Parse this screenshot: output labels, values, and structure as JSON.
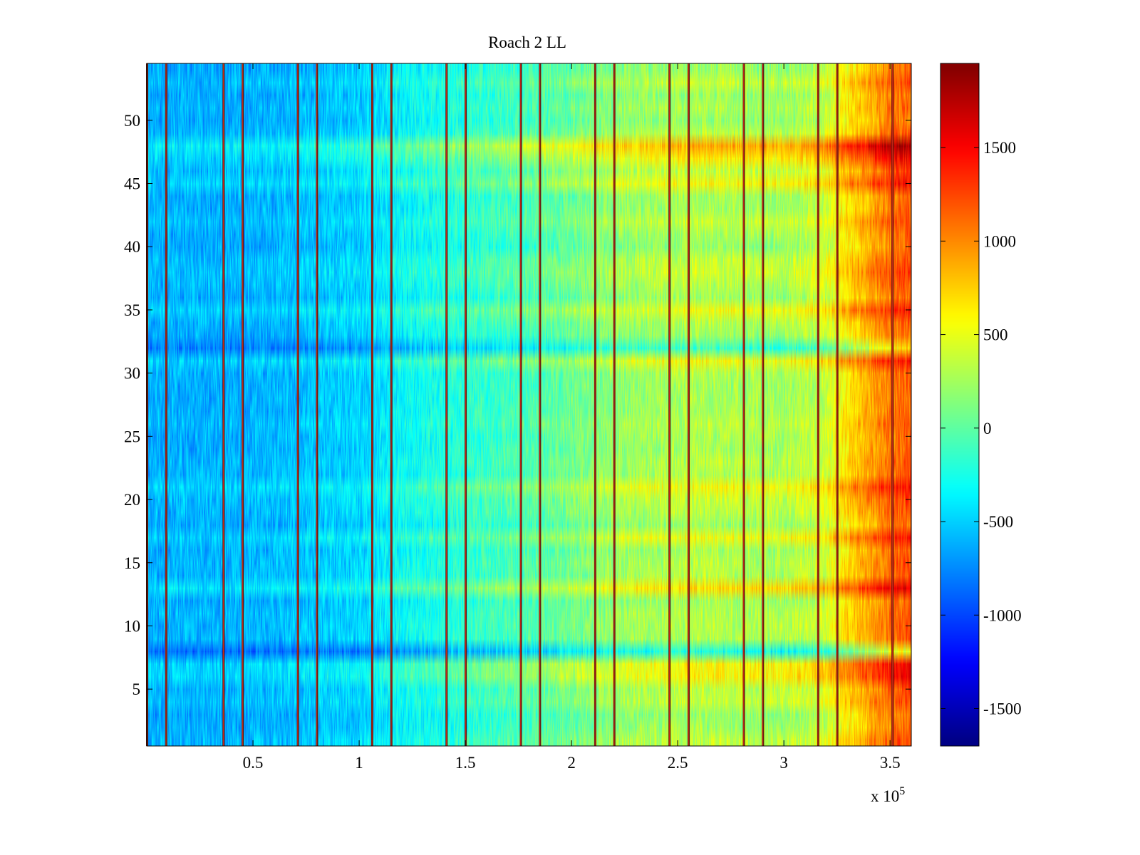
{
  "chart_data": {
    "type": "heatmap",
    "title": "Roach 2 LL",
    "xlabel": "",
    "ylabel": "",
    "x_exponent_label": "x 10",
    "x_exponent_power": "5",
    "xlim": [
      0,
      3.6
    ],
    "ylim": [
      0.5,
      54.5
    ],
    "x_ticks": [
      0.5,
      1,
      1.5,
      2,
      2.5,
      3,
      3.5
    ],
    "x_tick_labels": [
      "0.5",
      "1",
      "1.5",
      "2",
      "2.5",
      "3",
      "3.5"
    ],
    "y_ticks": [
      5,
      10,
      15,
      20,
      25,
      30,
      35,
      40,
      45,
      50
    ],
    "y_tick_labels": [
      "5",
      "10",
      "15",
      "20",
      "25",
      "30",
      "35",
      "40",
      "45",
      "50"
    ],
    "rows": 54,
    "colormap": "jet",
    "colorbar": {
      "range": [
        -1700,
        1950
      ],
      "ticks": [
        -1500,
        -1000,
        -500,
        0,
        500,
        1000,
        1500
      ],
      "tick_labels": [
        "-1500",
        "-1000",
        "-500",
        "0",
        "500",
        "1000",
        "1500"
      ],
      "placement": "right"
    },
    "vertical_artifact_lines_x": [
      0.0,
      0.09,
      0.36,
      0.45,
      0.71,
      0.8,
      1.06,
      1.15,
      1.41,
      1.5,
      1.76,
      1.85,
      2.11,
      2.2,
      2.46,
      2.55,
      2.81,
      2.9,
      3.16,
      3.25,
      3.51
    ],
    "column_trend": {
      "x": [
        0.0,
        0.2,
        0.4,
        0.6,
        0.8,
        1.0,
        1.2,
        1.4,
        1.6,
        1.8,
        2.0,
        2.2,
        2.4,
        2.6,
        2.8,
        3.0,
        3.2,
        3.3,
        3.4,
        3.5,
        3.6
      ],
      "mean_value": [
        -600,
        -600,
        -600,
        -580,
        -520,
        -480,
        -320,
        -220,
        -120,
        -40,
        80,
        220,
        280,
        320,
        300,
        280,
        430,
        700,
        900,
        1100,
        1200
      ]
    },
    "row_offsets": [
      {
        "row": 48,
        "offset": 650
      },
      {
        "row": 47,
        "offset": 350
      },
      {
        "row": 45,
        "offset": 300
      },
      {
        "row": 35,
        "offset": 250
      },
      {
        "row": 32,
        "offset": -500
      },
      {
        "row": 31,
        "offset": 280
      },
      {
        "row": 21,
        "offset": 280
      },
      {
        "row": 17,
        "offset": 260
      },
      {
        "row": 13,
        "offset": 450
      },
      {
        "row": 8,
        "offset": -650
      },
      {
        "row": 7,
        "offset": 320
      },
      {
        "row": 6,
        "offset": 330
      }
    ]
  }
}
